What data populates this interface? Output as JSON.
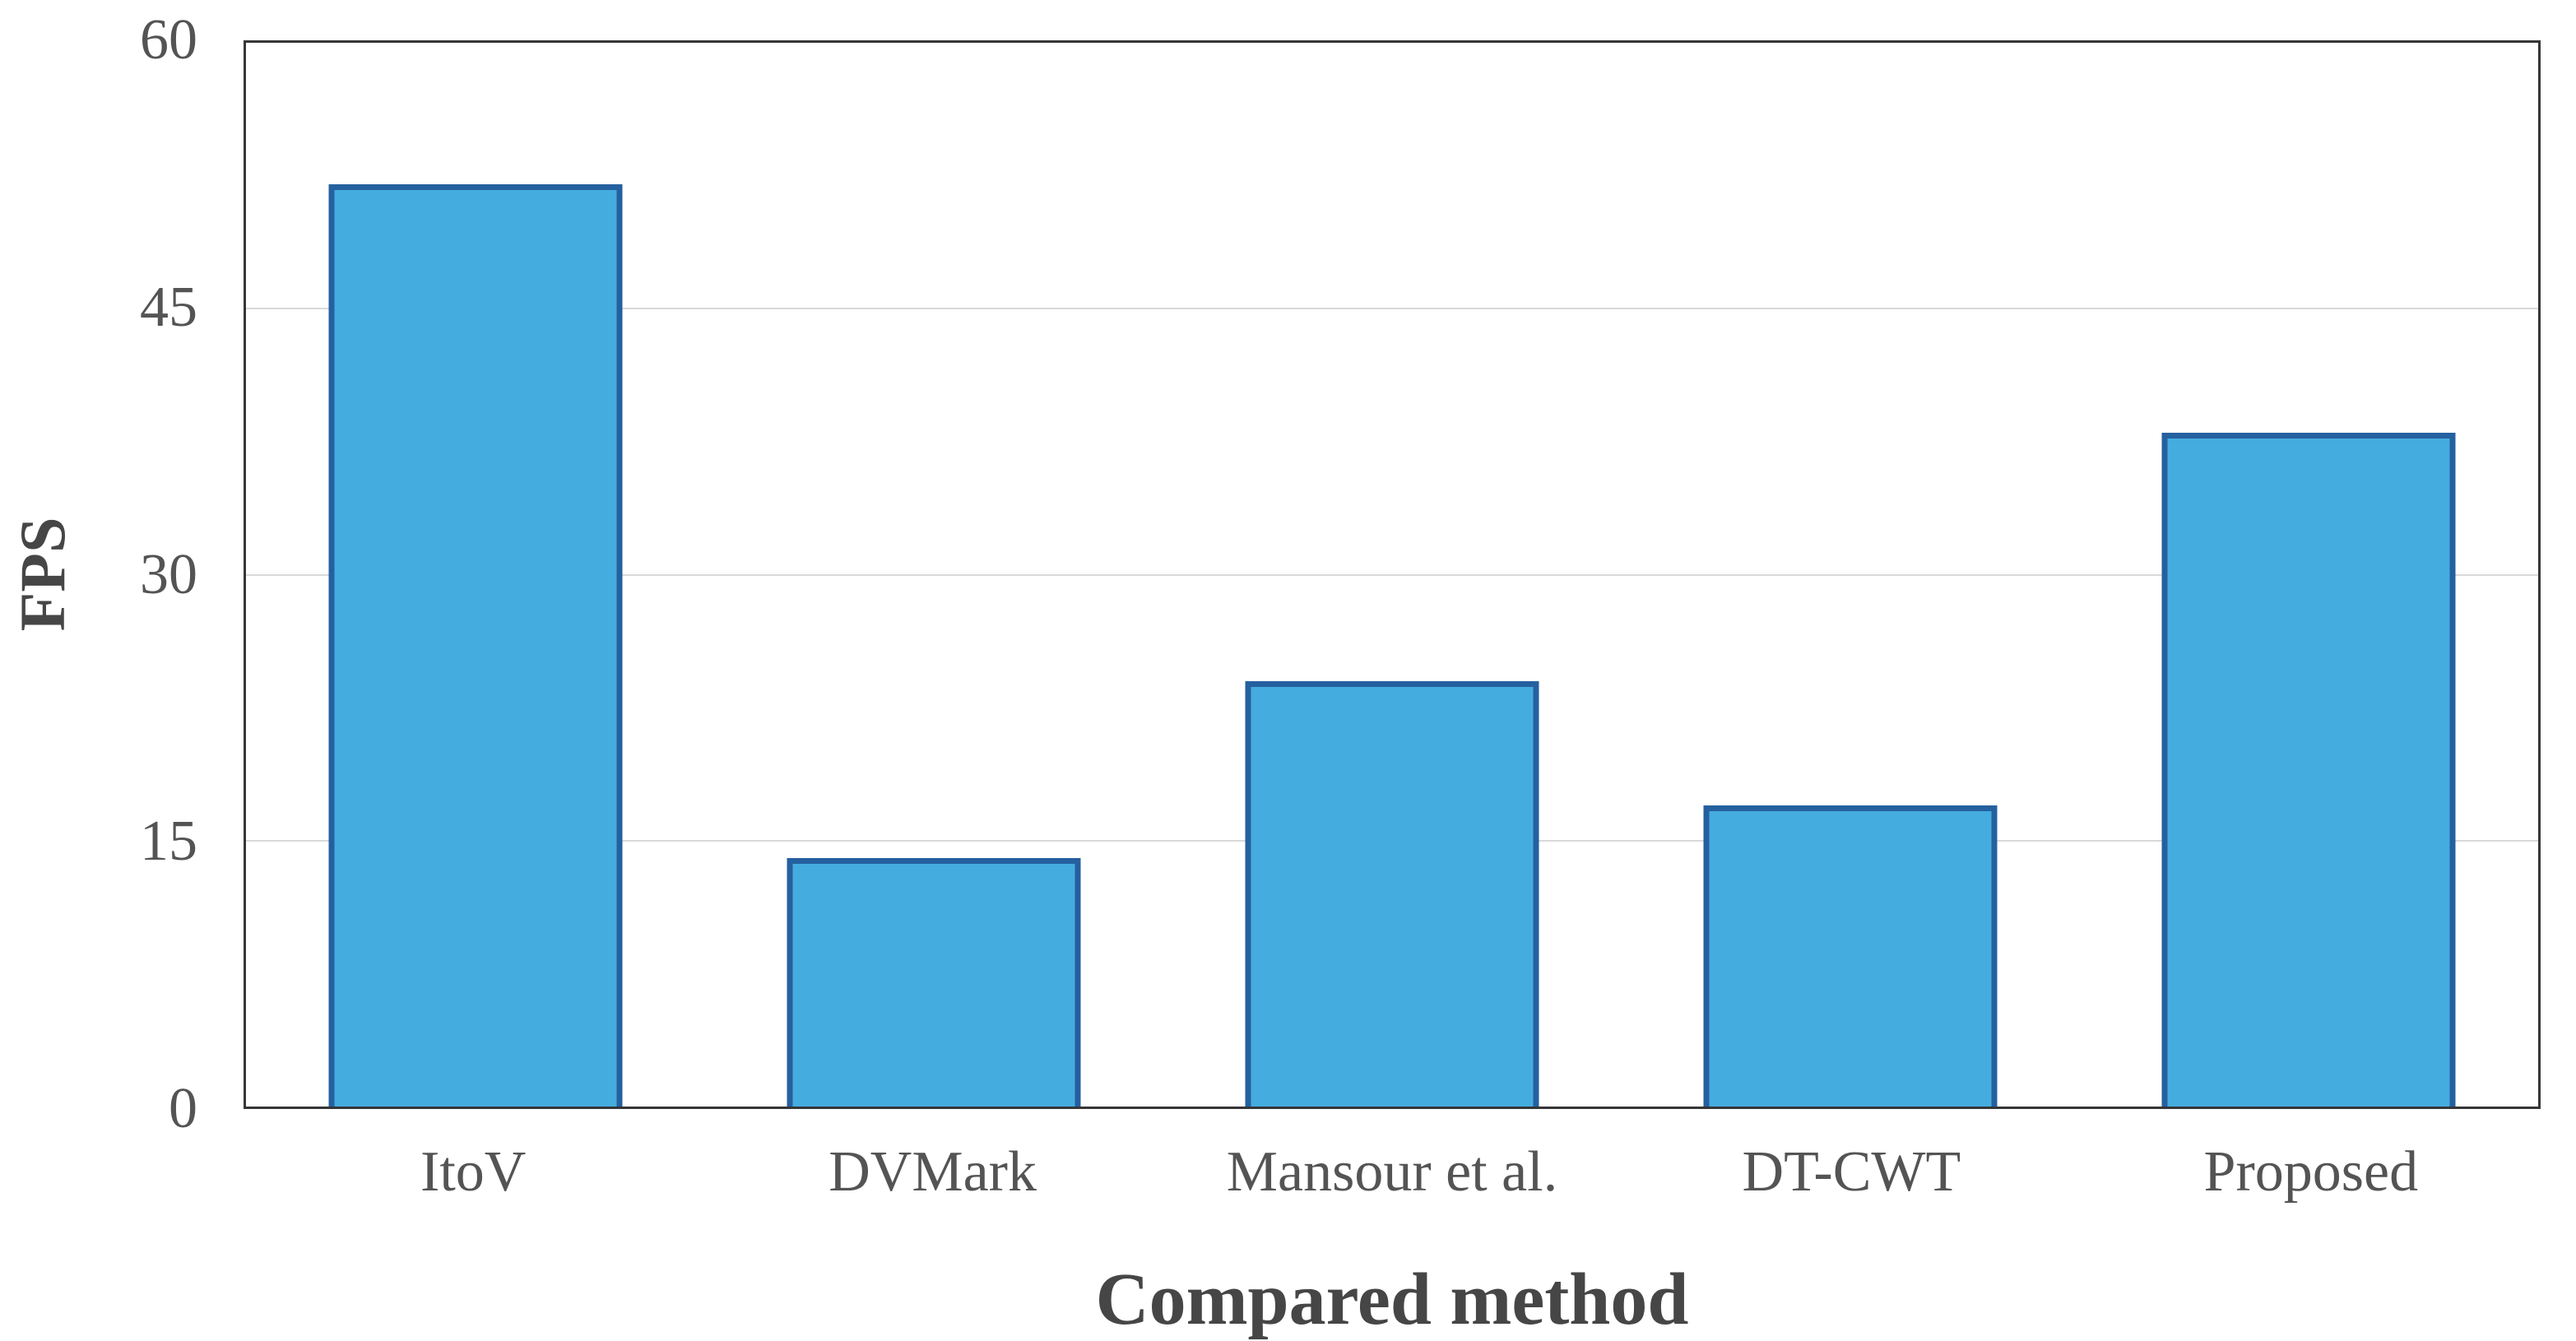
{
  "chart_data": {
    "type": "bar",
    "title": "",
    "xlabel": "Compared method",
    "ylabel": "FPS",
    "categories": [
      "ItoV",
      "DVMark",
      "Mansour et al.",
      "DT-CWT",
      "Proposed"
    ],
    "values": [
      52,
      14,
      24,
      17,
      38
    ],
    "ylim": [
      0,
      60
    ],
    "yticks": [
      0,
      15,
      30,
      45,
      60
    ],
    "grid": "horizontal-only",
    "legend": "none",
    "colors": {
      "bar_fill": "#45ACDF",
      "bar_border": "#25609F",
      "gridline": "#D9D9D9",
      "plot_border": "#363636",
      "tick_text": "#545454",
      "title_text": "#464646",
      "background": "#FFFFFF"
    }
  }
}
